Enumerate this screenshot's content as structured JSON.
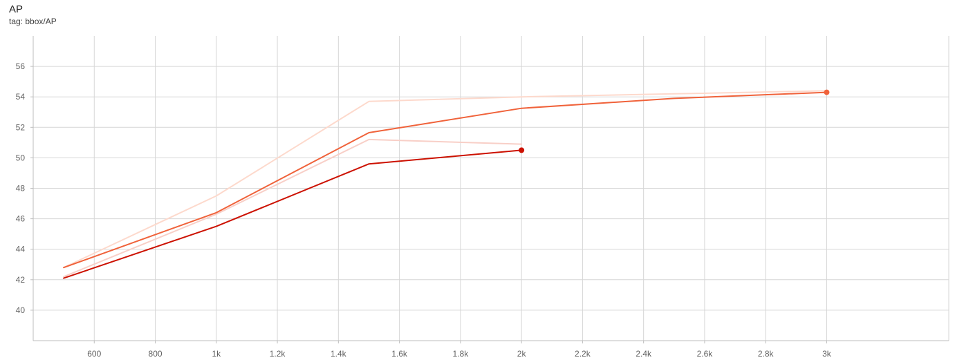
{
  "header": {
    "title": "AP",
    "subtitle": "tag: bbox/AP"
  },
  "chart_data": {
    "type": "line",
    "title": "AP",
    "subtitle": "tag: bbox/AP",
    "xlabel": "",
    "ylabel": "",
    "xlim": [
      400,
      3400
    ],
    "ylim": [
      38,
      58
    ],
    "x_ticks": [
      600,
      800,
      1000,
      1200,
      1400,
      1600,
      1800,
      2000,
      2200,
      2400,
      2600,
      2800,
      3000
    ],
    "x_tick_labels": [
      "600",
      "800",
      "1k",
      "1.2k",
      "1.4k",
      "1.6k",
      "1.8k",
      "2k",
      "2.2k",
      "2.4k",
      "2.6k",
      "2.8k",
      "3k"
    ],
    "y_ticks": [
      40,
      42,
      44,
      46,
      48,
      50,
      52,
      54,
      56
    ],
    "y_tick_labels": [
      "40",
      "42",
      "44",
      "46",
      "48",
      "50",
      "52",
      "54",
      "56"
    ],
    "grid": true,
    "legend": "none",
    "series": [
      {
        "role": "raw",
        "color": "#fdd9cc",
        "x": [
          500,
          1000,
          1500,
          2000,
          2500,
          3000
        ],
        "y": [
          42.8,
          47.5,
          53.7,
          54.0,
          54.2,
          54.4
        ]
      },
      {
        "role": "raw",
        "color": "#f8cfc7",
        "x": [
          500,
          1000,
          1500,
          2000
        ],
        "y": [
          42.2,
          46.3,
          51.2,
          50.9
        ]
      },
      {
        "role": "smoothed",
        "color": "#f0623a",
        "x": [
          500,
          1000,
          1500,
          2000,
          2500,
          3000
        ],
        "y": [
          42.8,
          46.4,
          51.65,
          53.25,
          53.9,
          54.3
        ]
      },
      {
        "role": "smoothed",
        "color": "#cc1100",
        "x": [
          500,
          1000,
          1500,
          2000
        ],
        "y": [
          42.1,
          45.5,
          49.6,
          50.5
        ]
      }
    ]
  }
}
